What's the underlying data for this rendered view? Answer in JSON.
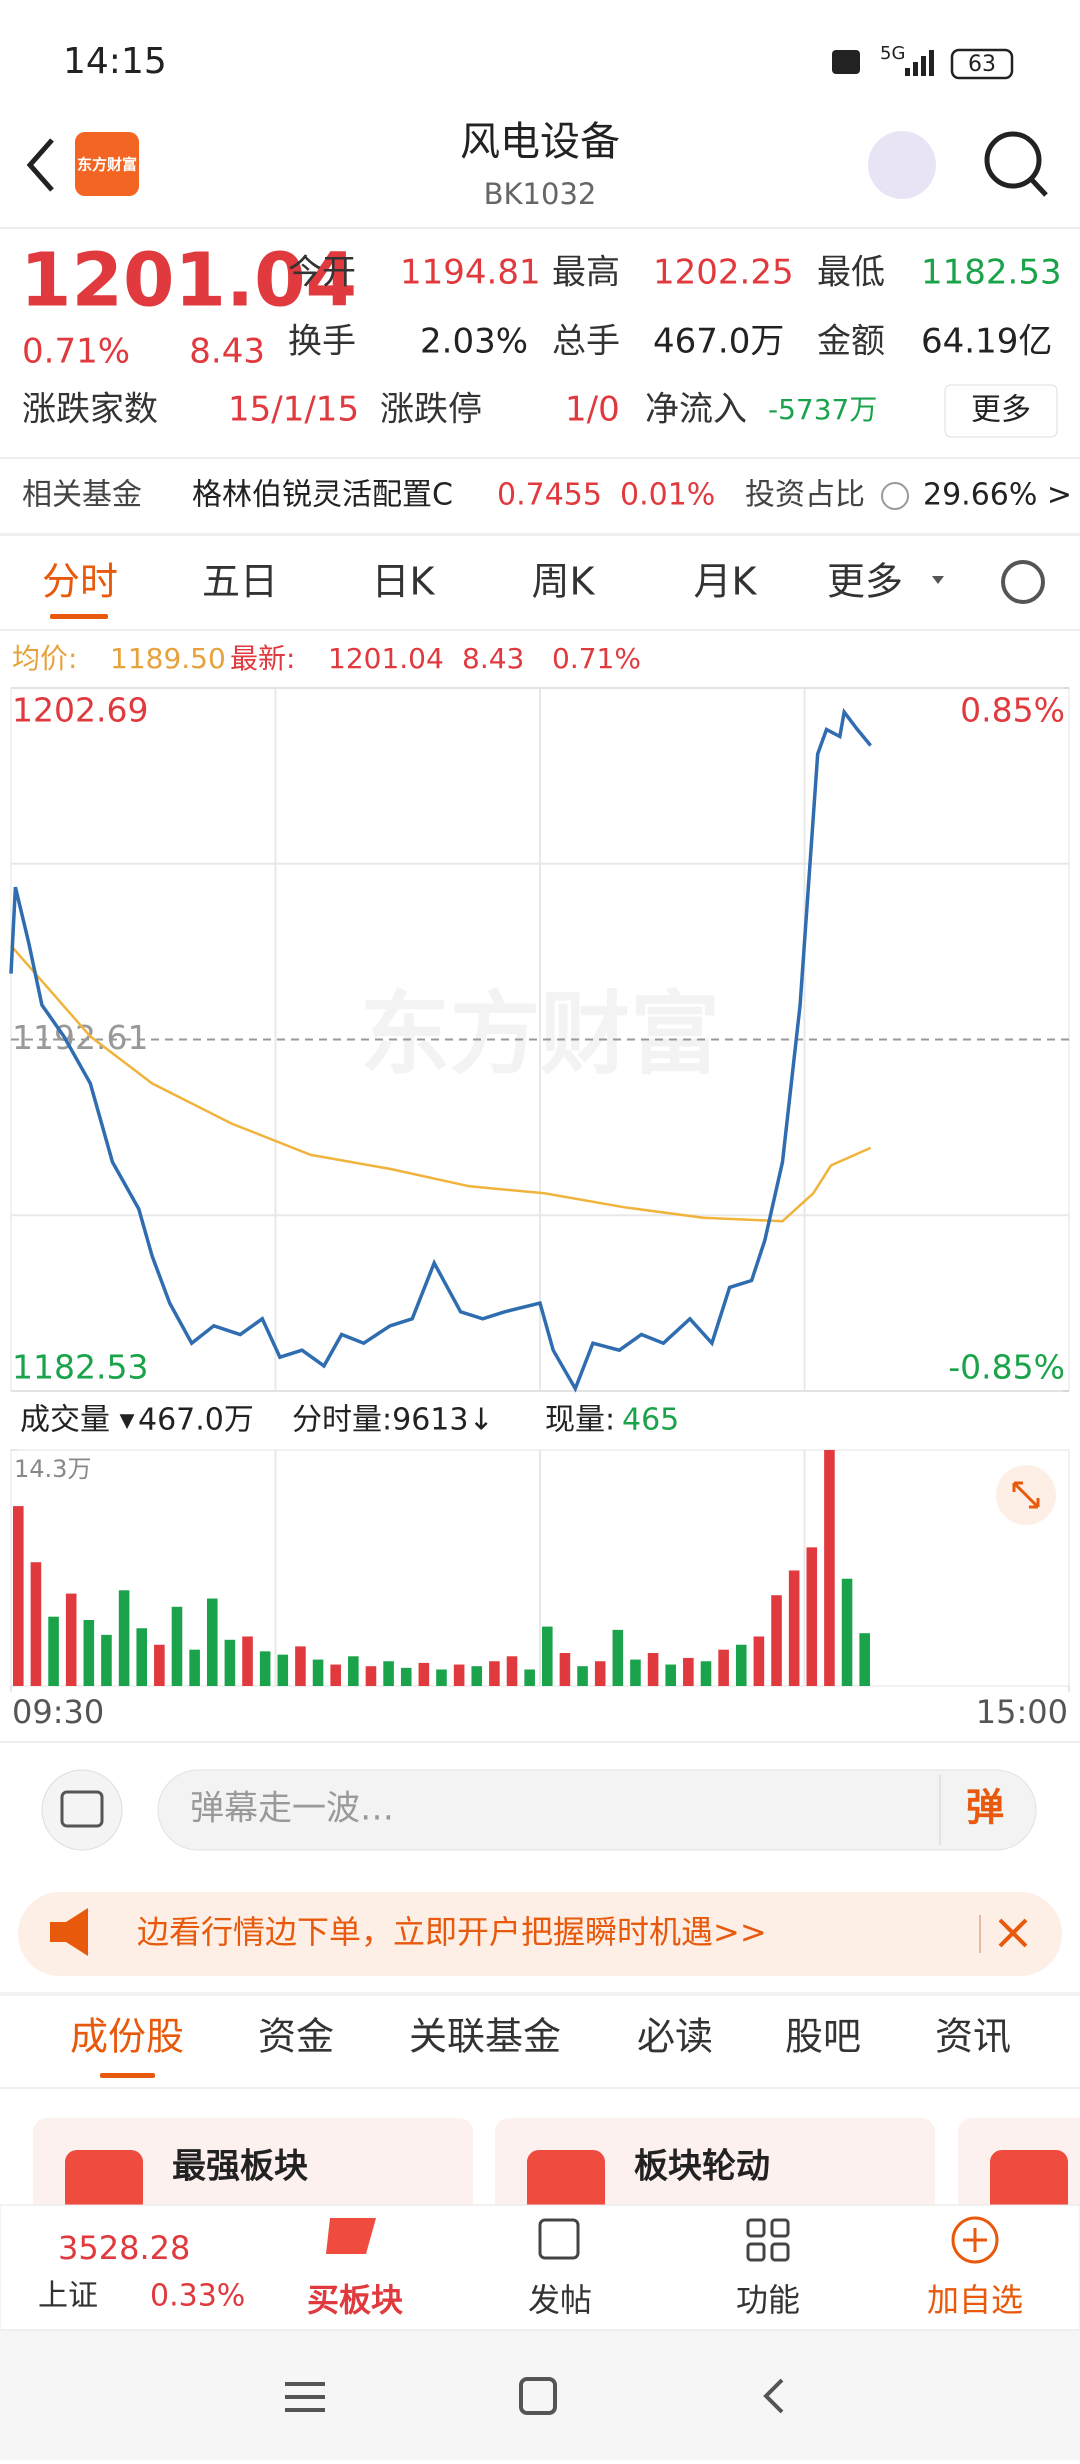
{
  "status_bar": {
    "time": "14:15",
    "network": "5G",
    "battery": "63"
  },
  "header": {
    "logo": "东方财富",
    "title": "风电设备",
    "code": "BK1032"
  },
  "quote": {
    "price": "1201.04",
    "change_pct": "0.71%",
    "change": "8.43",
    "stats": [
      {
        "label": "今开",
        "value": "1194.81"
      },
      {
        "label": "最高",
        "value": "1202.25"
      },
      {
        "label": "最低",
        "value": "1182.53"
      },
      {
        "label": "换手",
        "value": "2.03%"
      },
      {
        "label": "总手",
        "value": "467.0万"
      },
      {
        "label": "金额",
        "value": "64.19亿"
      }
    ],
    "breadth_label": "涨跌家数",
    "breadth": "15/1/15",
    "limit_label": "涨跌停",
    "limit": "1/0",
    "flow_label": "净流入",
    "flow": "-5737万",
    "more": "更多"
  },
  "fund": {
    "label": "相关基金",
    "name": "格林伯锐灵活配置C",
    "nav": "0.7455",
    "change": "0.01%",
    "ratio_label": "投资占比",
    "ratio": "29.66% >"
  },
  "tabs": [
    "分时",
    "五日",
    "日K",
    "周K",
    "月K",
    "更多"
  ],
  "info": {
    "avg_label": "均价:",
    "avg": "1189.50",
    "last_label": "最新:",
    "last": "1201.04",
    "change": "8.43",
    "pct": "0.71%"
  },
  "chart_data": [
    {
      "type": "line",
      "watermark": "东方财富",
      "series": [
        {
          "name": "最新",
          "color": "#2f6db0",
          "x": [
            0,
            1,
            4,
            7,
            12,
            18,
            23,
            29,
            32,
            36,
            41,
            46,
            52,
            57,
            61,
            66,
            71,
            75,
            80,
            86,
            91,
            96,
            102,
            107,
            112,
            120,
            123,
            128,
            132,
            138,
            143,
            148,
            154,
            159,
            163,
            168,
            171,
            175,
            179,
            181,
            183,
            185,
            188,
            189,
            192,
            195
          ],
          "values": [
            1194.5,
            1196.98,
            1195.4,
            1193.6,
            1192.7,
            1191.35,
            1189.1,
            1187.75,
            1186.4,
            1185.05,
            1183.9,
            1184.4,
            1184.15,
            1184.6,
            1183.5,
            1183.7,
            1183.25,
            1184.15,
            1183.9,
            1184.4,
            1184.6,
            1186.2,
            1184.8,
            1184.6,
            1184.8,
            1185.05,
            1183.7,
            1182.6,
            1183.9,
            1183.7,
            1184.15,
            1183.9,
            1184.6,
            1183.9,
            1185.5,
            1185.7,
            1186.85,
            1189.1,
            1193.6,
            1197.2,
            1200.8,
            1201.5,
            1201.3,
            1202.0,
            1201.5,
            1201.04
          ]
        },
        {
          "name": "均价",
          "color": "#f0b33c",
          "x": [
            0,
            18,
            32,
            50,
            68,
            86,
            104,
            121,
            139,
            157,
            175,
            182,
            186,
            195
          ],
          "values": [
            1195.3,
            1192.7,
            1191.35,
            1190.2,
            1189.3,
            1188.9,
            1188.4,
            1188.2,
            1187.8,
            1187.5,
            1187.4,
            1188.2,
            1189.0,
            1189.5
          ]
        }
      ],
      "xlim": [
        0,
        240
      ],
      "xgrid": [
        60,
        120,
        180
      ],
      "ylim": [
        1182.53,
        1202.69
      ],
      "yticks": [
        1182.53,
        1192.61,
        1202.69
      ],
      "ygrid": [
        1187.57,
        1197.65
      ],
      "y2lim": [
        -0.85,
        0.85
      ],
      "y2ticks": [
        {
          "value": -0.85,
          "label": "-0.85%"
        },
        {
          "value": 0.85,
          "label": "0.85%"
        }
      ]
    },
    {
      "type": "bar",
      "xlim": [
        0,
        240
      ],
      "xgrid": [
        60,
        120,
        180
      ],
      "xticks": [
        {
          "value": 0,
          "label": "09:30"
        },
        {
          "value": 240,
          "label": "15:00"
        }
      ],
      "ylim": [
        0,
        14.3
      ],
      "yticks": [
        {
          "value": 14.3,
          "label": "14.3万"
        }
      ],
      "x": [
        0,
        4,
        8,
        12,
        16,
        20,
        24,
        28,
        32,
        36,
        40,
        44,
        48,
        52,
        56,
        60,
        64,
        68,
        72,
        76,
        80,
        84,
        88,
        92,
        96,
        100,
        104,
        108,
        112,
        116,
        120,
        124,
        128,
        132,
        136,
        140,
        144,
        148,
        152,
        156,
        160,
        164,
        168,
        172,
        176,
        180,
        184,
        188,
        192
      ],
      "values": [
        10.9,
        7.5,
        4.2,
        5.6,
        4.0,
        3.1,
        5.8,
        3.5,
        2.5,
        4.8,
        2.2,
        5.3,
        2.8,
        3.0,
        2.1,
        1.9,
        2.4,
        1.6,
        1.3,
        1.8,
        1.2,
        1.5,
        1.1,
        1.4,
        1.0,
        1.3,
        1.2,
        1.5,
        1.8,
        1.0,
        3.6,
        2.0,
        1.2,
        1.5,
        3.4,
        1.6,
        2.0,
        1.3,
        1.7,
        1.5,
        2.2,
        2.5,
        3.0,
        5.5,
        7.0,
        8.4,
        14.3,
        6.5,
        3.2
      ],
      "colors": [
        "#e0393e",
        "#e0393e",
        "#1aa34a",
        "#e0393e",
        "#1aa34a",
        "#1aa34a",
        "#1aa34a",
        "#1aa34a",
        "#e0393e",
        "#1aa34a",
        "#1aa34a",
        "#1aa34a",
        "#1aa34a",
        "#e0393e",
        "#1aa34a",
        "#1aa34a",
        "#e0393e",
        "#1aa34a",
        "#e0393e",
        "#1aa34a",
        "#e0393e",
        "#1aa34a",
        "#1aa34a",
        "#e0393e",
        "#1aa34a",
        "#e0393e",
        "#1aa34a",
        "#e0393e",
        "#e0393e",
        "#1aa34a",
        "#1aa34a",
        "#e0393e",
        "#1aa34a",
        "#e0393e",
        "#1aa34a",
        "#1aa34a",
        "#e0393e",
        "#1aa34a",
        "#e0393e",
        "#1aa34a",
        "#e0393e",
        "#1aa34a",
        "#e0393e",
        "#e0393e",
        "#e0393e",
        "#e0393e",
        "#e0393e",
        "#1aa34a",
        "#1aa34a"
      ]
    }
  ],
  "volume_bar": {
    "label": "成交量 ▾",
    "total": "467.0万",
    "tick_label": "分时量:9613↓",
    "cur_label": "现量:",
    "cur": "465"
  },
  "barrage": {
    "placeholder": "弹幕走一波…",
    "button": "弹"
  },
  "banner": "边看行情边下单，立即开户把握瞬时机遇>>",
  "section_tabs": [
    "成份股",
    "资金",
    "关联基金",
    "必读",
    "股吧",
    "资讯"
  ],
  "cards": [
    {
      "title": "最强板块"
    },
    {
      "title": "板块轮动"
    }
  ],
  "bottom_nav": {
    "index_value": "3528.28",
    "index_name": "上证",
    "index_pct": "0.33%",
    "items": [
      "买板块",
      "发帖",
      "功能",
      "加自选"
    ]
  }
}
